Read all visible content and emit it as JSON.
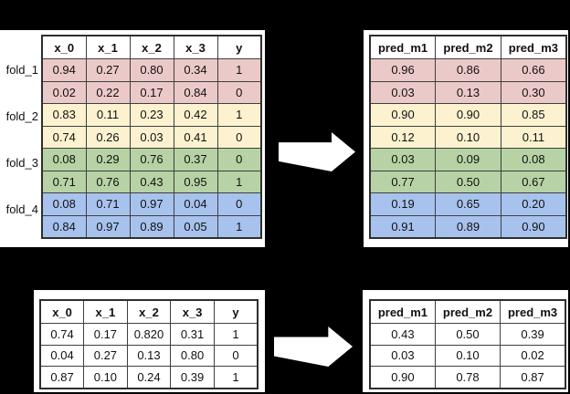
{
  "colors": {
    "background": "#000000",
    "panel": "#ffffff",
    "table_border": "#3f3f3f",
    "text": "#111111",
    "arrow": "#ffffff",
    "folds": {
      "fold_1": "#ecc9c9",
      "fold_2": "#fdf2d0",
      "fold_3": "#b7d2a4",
      "fold_4": "#a8c2ee"
    }
  },
  "icons": {
    "flow_arrow": "arrow-right"
  },
  "train": {
    "features": {
      "headers": [
        "x_0",
        "x_1",
        "x_2",
        "x_3",
        "y"
      ],
      "groups": [
        {
          "fold": "fold_1",
          "label": "fold_1",
          "rows": [
            [
              "0.94",
              "0.27",
              "0.80",
              "0.34",
              "1"
            ],
            [
              "0.02",
              "0.22",
              "0.17",
              "0.84",
              "0"
            ]
          ]
        },
        {
          "fold": "fold_2",
          "label": "fold_2",
          "rows": [
            [
              "0.83",
              "0.11",
              "0.23",
              "0.42",
              "1"
            ],
            [
              "0.74",
              "0.26",
              "0.03",
              "0.41",
              "0"
            ]
          ]
        },
        {
          "fold": "fold_3",
          "label": "fold_3",
          "rows": [
            [
              "0.08",
              "0.29",
              "0.76",
              "0.37",
              "0"
            ],
            [
              "0.71",
              "0.76",
              "0.43",
              "0.95",
              "1"
            ]
          ]
        },
        {
          "fold": "fold_4",
          "label": "fold_4",
          "rows": [
            [
              "0.08",
              "0.71",
              "0.97",
              "0.04",
              "0"
            ],
            [
              "0.84",
              "0.97",
              "0.89",
              "0.05",
              "1"
            ]
          ]
        }
      ]
    },
    "predictions": {
      "headers": [
        "pred_m1",
        "pred_m2",
        "pred_m3"
      ],
      "groups": [
        {
          "fold": "fold_1",
          "rows": [
            [
              "0.96",
              "0.86",
              "0.66"
            ],
            [
              "0.03",
              "0.13",
              "0.30"
            ]
          ]
        },
        {
          "fold": "fold_2",
          "rows": [
            [
              "0.90",
              "0.90",
              "0.85"
            ],
            [
              "0.12",
              "0.10",
              "0.11"
            ]
          ]
        },
        {
          "fold": "fold_3",
          "rows": [
            [
              "0.03",
              "0.09",
              "0.08"
            ],
            [
              "0.77",
              "0.50",
              "0.67"
            ]
          ]
        },
        {
          "fold": "fold_4",
          "rows": [
            [
              "0.19",
              "0.65",
              "0.20"
            ],
            [
              "0.91",
              "0.89",
              "0.90"
            ]
          ]
        }
      ]
    }
  },
  "holdout": {
    "features": {
      "headers": [
        "x_0",
        "x_1",
        "x_2",
        "x_3",
        "y"
      ],
      "groups": [
        {
          "rows": [
            [
              "0.74",
              "0.17",
              "0.820",
              "0.31",
              "1"
            ],
            [
              "0.04",
              "0.27",
              "0.13",
              "0.80",
              "0"
            ],
            [
              "0.87",
              "0.10",
              "0.24",
              "0.39",
              "1"
            ]
          ]
        }
      ]
    },
    "predictions": {
      "headers": [
        "pred_m1",
        "pred_m2",
        "pred_m3"
      ],
      "groups": [
        {
          "rows": [
            [
              "0.43",
              "0.50",
              "0.39"
            ],
            [
              "0.03",
              "0.10",
              "0.02"
            ],
            [
              "0.90",
              "0.78",
              "0.87"
            ]
          ]
        }
      ]
    }
  }
}
